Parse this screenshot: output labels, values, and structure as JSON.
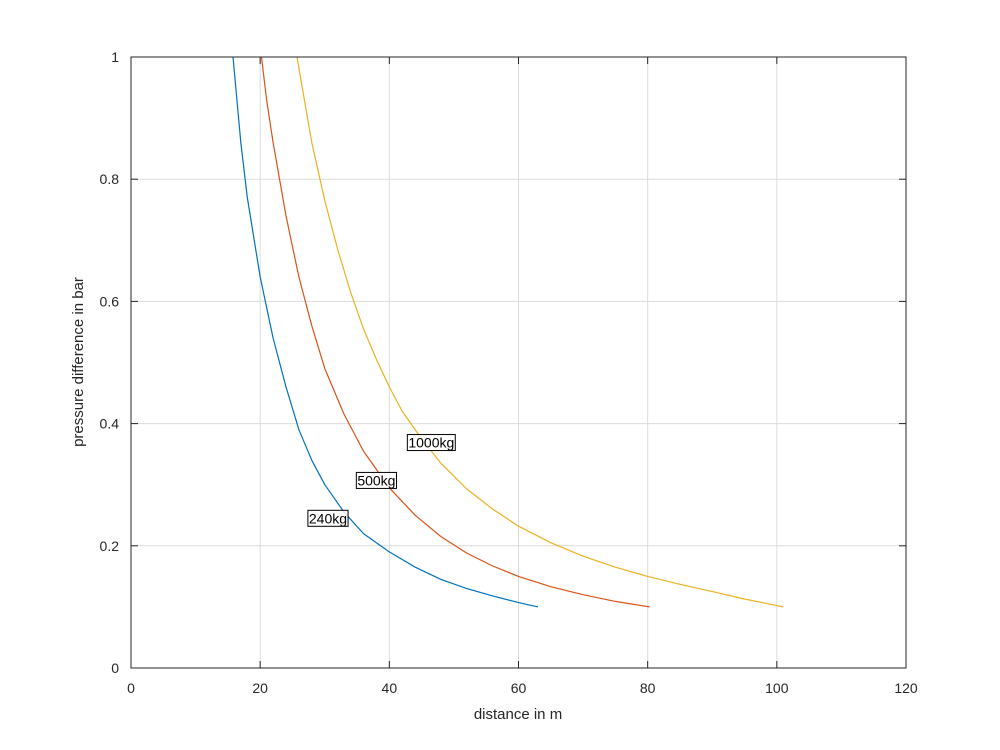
{
  "chart_data": {
    "type": "line",
    "title": "",
    "xlabel": "distance in m",
    "ylabel": "pressure difference in bar",
    "xlim": [
      0,
      120
    ],
    "ylim": [
      0,
      1
    ],
    "xticks": [
      0,
      20,
      40,
      60,
      80,
      100,
      120
    ],
    "yticks": [
      0,
      0.2,
      0.4,
      0.6,
      0.8,
      1
    ],
    "xtick_labels": [
      "0",
      "20",
      "40",
      "60",
      "80",
      "100",
      "120"
    ],
    "ytick_labels": [
      "0",
      "0.2",
      "0.4",
      "0.6",
      "0.8",
      "1"
    ],
    "grid": true,
    "legend": "none",
    "series": [
      {
        "color": "#0072BD",
        "points": [
          [
            15.8,
            1.0
          ],
          [
            17,
            0.86
          ],
          [
            18,
            0.77
          ],
          [
            20,
            0.64
          ],
          [
            22,
            0.54
          ],
          [
            24,
            0.46
          ],
          [
            26,
            0.39
          ],
          [
            28,
            0.34
          ],
          [
            30,
            0.3
          ],
          [
            33,
            0.255
          ],
          [
            36,
            0.22
          ],
          [
            40,
            0.19
          ],
          [
            44,
            0.165
          ],
          [
            48,
            0.145
          ],
          [
            52,
            0.13
          ],
          [
            56,
            0.118
          ],
          [
            60,
            0.107
          ],
          [
            63,
            0.1
          ]
        ]
      },
      {
        "color": "#D95319",
        "points": [
          [
            20.2,
            1.0
          ],
          [
            21,
            0.93
          ],
          [
            22,
            0.86
          ],
          [
            24,
            0.74
          ],
          [
            26,
            0.64
          ],
          [
            28,
            0.56
          ],
          [
            30,
            0.49
          ],
          [
            33,
            0.415
          ],
          [
            36,
            0.355
          ],
          [
            40,
            0.295
          ],
          [
            44,
            0.25
          ],
          [
            48,
            0.215
          ],
          [
            52,
            0.188
          ],
          [
            56,
            0.167
          ],
          [
            60,
            0.15
          ],
          [
            65,
            0.133
          ],
          [
            70,
            0.12
          ],
          [
            75,
            0.109
          ],
          [
            80.3,
            0.1
          ]
        ]
      },
      {
        "color": "#EDB120",
        "points": [
          [
            25.7,
            1.0
          ],
          [
            27,
            0.92
          ],
          [
            28,
            0.86
          ],
          [
            30,
            0.765
          ],
          [
            32,
            0.685
          ],
          [
            34,
            0.615
          ],
          [
            36,
            0.555
          ],
          [
            38,
            0.505
          ],
          [
            40,
            0.46
          ],
          [
            42,
            0.42
          ],
          [
            45,
            0.375
          ],
          [
            48,
            0.335
          ],
          [
            52,
            0.293
          ],
          [
            56,
            0.26
          ],
          [
            60,
            0.232
          ],
          [
            65,
            0.205
          ],
          [
            70,
            0.183
          ],
          [
            75,
            0.165
          ],
          [
            80,
            0.15
          ],
          [
            85,
            0.137
          ],
          [
            90,
            0.125
          ],
          [
            95,
            0.113
          ],
          [
            101,
            0.1
          ]
        ]
      }
    ],
    "annotations": [
      {
        "text": "240kg",
        "x": 30.5,
        "y": 0.245
      },
      {
        "text": "500kg",
        "x": 38,
        "y": 0.307
      },
      {
        "text": "1000kg",
        "x": 46.5,
        "y": 0.369
      }
    ]
  }
}
